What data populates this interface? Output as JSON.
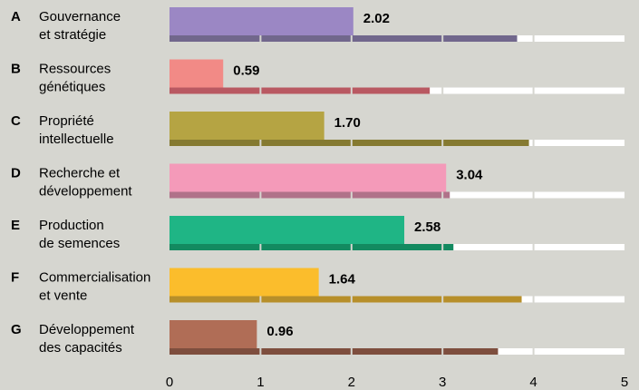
{
  "chart_data": {
    "type": "bar",
    "categories": [
      {
        "letter": "A",
        "lines": [
          "Gouvernance",
          "et stratégie"
        ]
      },
      {
        "letter": "B",
        "lines": [
          "Ressources",
          "génétiques"
        ]
      },
      {
        "letter": "C",
        "lines": [
          "Propriété",
          "intellectuelle"
        ]
      },
      {
        "letter": "D",
        "lines": [
          "Recherche et",
          "développement"
        ]
      },
      {
        "letter": "E",
        "lines": [
          "Production",
          "de semences"
        ]
      },
      {
        "letter": "F",
        "lines": [
          "Commercialisation",
          "et vente"
        ]
      },
      {
        "letter": "G",
        "lines": [
          "Développement",
          "des capacités"
        ]
      }
    ],
    "series": [
      {
        "values": [
          2.02,
          0.59,
          1.7,
          3.04,
          2.58,
          1.64,
          0.96
        ],
        "labels": [
          "2.02",
          "0.59",
          "1.70",
          "3.04",
          "2.58",
          "1.64",
          "0.96"
        ],
        "colors": [
          "#9b87c4",
          "#f28a86",
          "#b5a443",
          "#f49ab9",
          "#1fb585",
          "#fbbd2c",
          "#b06d56"
        ]
      },
      {
        "values": [
          3.82,
          2.86,
          3.95,
          3.08,
          3.12,
          3.87,
          3.61
        ],
        "colors": [
          "#71678c",
          "#b95962",
          "#857a31",
          "#b07289",
          "#138a60",
          "#b78f2a",
          "#7e4e3e"
        ]
      }
    ],
    "xlim": [
      0,
      5
    ],
    "xticks": [
      "0",
      "1",
      "2",
      "3",
      "4",
      "5"
    ],
    "track_color": "#ffffff",
    "background": "#d6d6d0"
  }
}
